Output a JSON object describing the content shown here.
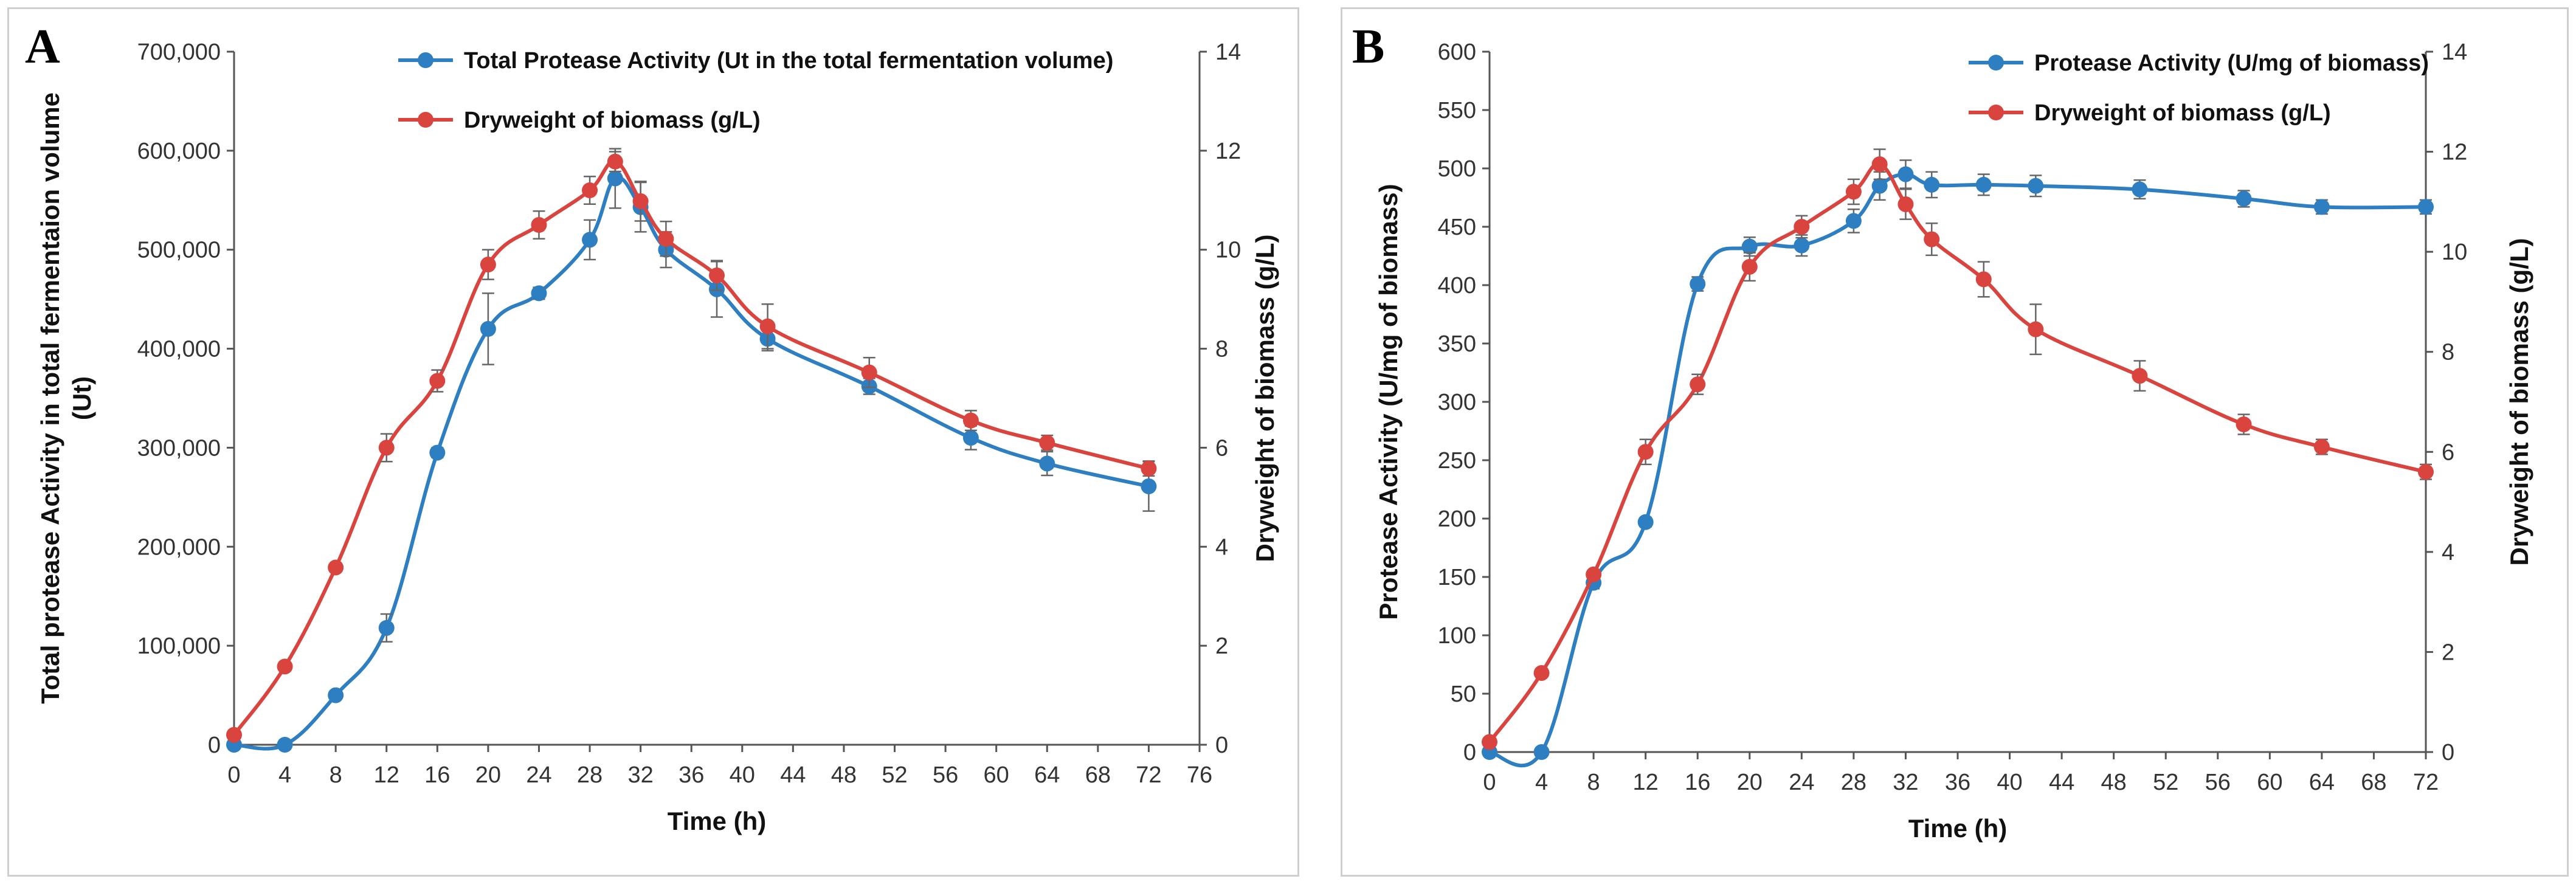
{
  "chart_data": [
    {
      "panel": "A",
      "type": "line",
      "x": [
        0,
        4,
        8,
        12,
        16,
        20,
        24,
        28,
        30,
        32,
        34,
        38,
        42,
        50,
        58,
        64,
        72
      ],
      "xlabel": "Time (h)",
      "xticks": [
        0,
        4,
        8,
        12,
        16,
        20,
        24,
        28,
        32,
        36,
        40,
        44,
        48,
        52,
        56,
        60,
        64,
        68,
        72,
        76
      ],
      "xlim": [
        0,
        76
      ],
      "ylabel_left": "Total protease  Activity in total fermentaion volume (Ut)",
      "ylim_left": [
        0,
        700000
      ],
      "yticks_left": [
        "0",
        "100,000",
        "200,000",
        "300,000",
        "400,000",
        "500,000",
        "600,000",
        "700,000"
      ],
      "ylabel_right": "Dryweight of biomass (g/L)",
      "ylim_right": [
        0,
        14
      ],
      "yticks_right": [
        "0",
        "2",
        "4",
        "6",
        "8",
        "10",
        "12",
        "14"
      ],
      "legend_position": "top-center",
      "series": [
        {
          "name": "Total Protease Activity (Ut in the total fermentation volume)",
          "axis": "left",
          "color": "#2e7fc1",
          "values": [
            0,
            0,
            50000,
            118000,
            295000,
            420000,
            456000,
            510000,
            572000,
            543000,
            500000,
            460000,
            410000,
            362000,
            310000,
            284000,
            261000
          ],
          "errors": [
            0,
            0,
            3000,
            14000,
            5000,
            36000,
            6000,
            20000,
            30000,
            25000,
            18000,
            28000,
            12000,
            8000,
            12000,
            12000,
            25000
          ]
        },
        {
          "name": "Dryweight of biomass (g/L)",
          "axis": "right",
          "color": "#d9443f",
          "values": [
            0.2,
            1.58,
            3.58,
            6.0,
            7.35,
            9.7,
            10.5,
            11.2,
            11.78,
            10.98,
            10.22,
            9.48,
            8.45,
            7.52,
            6.55,
            6.1,
            5.58
          ],
          "errors": [
            0,
            0,
            0,
            0.28,
            0.22,
            0.3,
            0.28,
            0.28,
            0.2,
            0.4,
            0.35,
            0.3,
            0.45,
            0.3,
            0.2,
            0.15,
            0.15
          ]
        }
      ]
    },
    {
      "panel": "B",
      "type": "line",
      "x": [
        0,
        4,
        8,
        12,
        16,
        20,
        24,
        28,
        30,
        32,
        34,
        38,
        42,
        50,
        58,
        64,
        72
      ],
      "xlabel": "Time (h)",
      "xticks": [
        0,
        4,
        8,
        12,
        16,
        20,
        24,
        28,
        32,
        36,
        40,
        44,
        48,
        52,
        56,
        60,
        64,
        68,
        72
      ],
      "xlim": [
        0,
        72
      ],
      "ylabel_left": "Protease Activity (U/mg of biomass)",
      "ylim_left": [
        0,
        600
      ],
      "yticks_left": [
        "0",
        "50",
        "100",
        "150",
        "200",
        "250",
        "300",
        "350",
        "400",
        "450",
        "500",
        "550",
        "600"
      ],
      "ylabel_right": "Dryweight of biomass (g/L)",
      "ylim_right": [
        0,
        14
      ],
      "yticks_right": [
        "0",
        "2",
        "4",
        "6",
        "8",
        "10",
        "12",
        "14"
      ],
      "legend_position": "top-right",
      "series": [
        {
          "name": "Protease Activity (U/mg of biomass)",
          "axis": "left",
          "color": "#2e7fc1",
          "values": [
            0,
            0,
            145,
            197,
            401,
            433,
            434,
            455,
            485,
            495,
            486,
            486,
            485,
            482,
            474,
            467,
            467
          ],
          "errors": [
            0,
            0,
            5,
            4,
            6,
            8,
            9,
            10,
            12,
            12,
            11,
            9,
            9,
            8,
            7,
            6,
            6
          ]
        },
        {
          "name": "Dryweight of biomass (g/L)",
          "axis": "right",
          "color": "#d9443f",
          "values": [
            0.2,
            1.58,
            3.55,
            6.0,
            7.35,
            9.7,
            10.5,
            11.2,
            11.75,
            10.95,
            10.25,
            9.45,
            8.45,
            7.52,
            6.55,
            6.1,
            5.6
          ],
          "errors": [
            0,
            0,
            0,
            0.25,
            0.2,
            0.28,
            0.22,
            0.25,
            0.3,
            0.3,
            0.32,
            0.35,
            0.5,
            0.3,
            0.2,
            0.15,
            0.15
          ]
        }
      ]
    }
  ]
}
